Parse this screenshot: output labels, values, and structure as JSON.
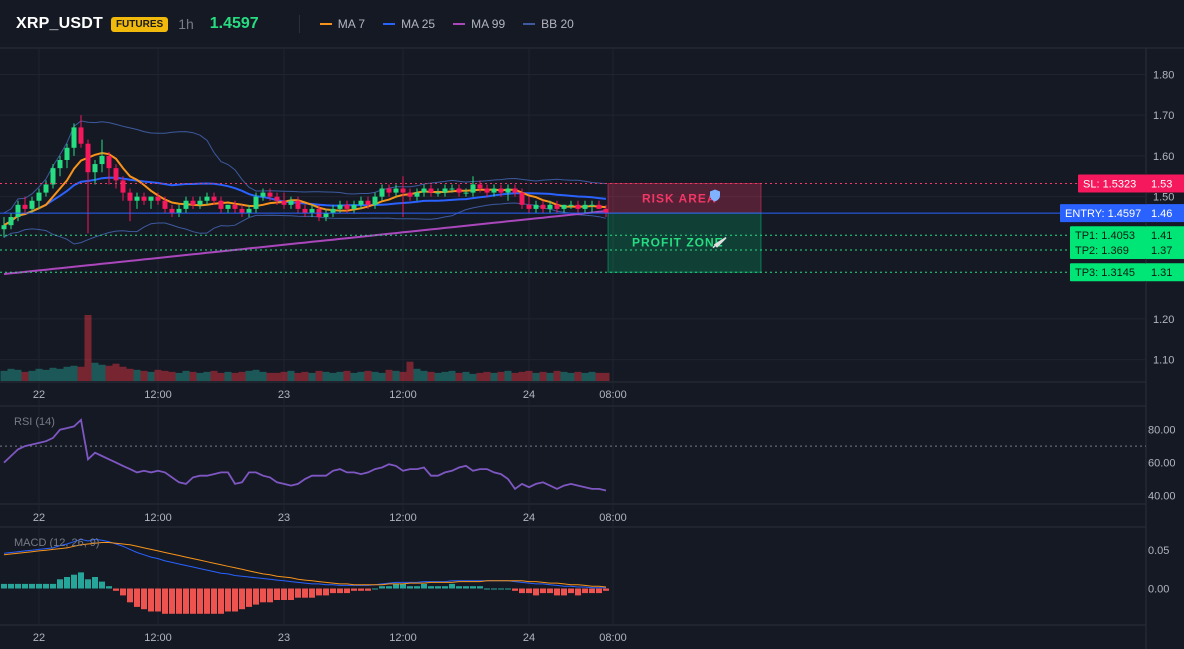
{
  "header": {
    "symbol": "XRP_USDT",
    "badge": "FUTURES",
    "timeframe": "1h",
    "last_price": "1.4597",
    "legend": [
      {
        "label": "MA 7",
        "color": "#f7931a"
      },
      {
        "label": "MA 25",
        "color": "#2962ff"
      },
      {
        "label": "MA 99",
        "color": "#ab47bc"
      },
      {
        "label": "BB 20",
        "color": "#3d5a9e"
      }
    ]
  },
  "colors": {
    "background": "#151924",
    "up": "#26a69a",
    "down": "#f23645",
    "stop_loss": "#f23665",
    "entry": "#2962ff",
    "take_profit": "#00e676",
    "rsi": "#7e57c2",
    "macd": "#2962ff",
    "signal": "#f7931a"
  },
  "chart_data": [
    {
      "type": "candlestick",
      "name": "price",
      "y_axis_ticks": [
        "1.80",
        "1.70",
        "1.60",
        "1.50",
        "1.20",
        "1.10"
      ],
      "ylim": [
        1.05,
        1.86
      ],
      "x_tick_labels": [
        "22",
        "12:00",
        "23",
        "12:00",
        "24",
        "08:00"
      ],
      "x_tick_index": [
        5,
        22,
        40,
        57,
        75,
        87
      ],
      "candles": [
        [
          1.42,
          1.45,
          1.4,
          1.43
        ],
        [
          1.43,
          1.46,
          1.42,
          1.45
        ],
        [
          1.45,
          1.49,
          1.44,
          1.48
        ],
        [
          1.48,
          1.5,
          1.46,
          1.47
        ],
        [
          1.47,
          1.5,
          1.46,
          1.49
        ],
        [
          1.49,
          1.52,
          1.47,
          1.51
        ],
        [
          1.51,
          1.54,
          1.5,
          1.53
        ],
        [
          1.53,
          1.58,
          1.52,
          1.57
        ],
        [
          1.57,
          1.6,
          1.55,
          1.59
        ],
        [
          1.59,
          1.63,
          1.57,
          1.62
        ],
        [
          1.62,
          1.68,
          1.6,
          1.67
        ],
        [
          1.67,
          1.7,
          1.62,
          1.63
        ],
        [
          1.63,
          1.64,
          1.41,
          1.56
        ],
        [
          1.56,
          1.59,
          1.53,
          1.58
        ],
        [
          1.58,
          1.64,
          1.56,
          1.6
        ],
        [
          1.6,
          1.61,
          1.53,
          1.57
        ],
        [
          1.57,
          1.58,
          1.52,
          1.54
        ],
        [
          1.54,
          1.55,
          1.49,
          1.51
        ],
        [
          1.51,
          1.52,
          1.44,
          1.49
        ],
        [
          1.49,
          1.51,
          1.47,
          1.5
        ],
        [
          1.5,
          1.51,
          1.48,
          1.49
        ],
        [
          1.49,
          1.5,
          1.47,
          1.5
        ],
        [
          1.5,
          1.51,
          1.48,
          1.49
        ],
        [
          1.49,
          1.5,
          1.46,
          1.47
        ],
        [
          1.47,
          1.48,
          1.45,
          1.46
        ],
        [
          1.46,
          1.48,
          1.45,
          1.47
        ],
        [
          1.47,
          1.5,
          1.46,
          1.49
        ],
        [
          1.49,
          1.5,
          1.47,
          1.48
        ],
        [
          1.48,
          1.5,
          1.47,
          1.49
        ],
        [
          1.49,
          1.51,
          1.48,
          1.5
        ],
        [
          1.5,
          1.51,
          1.48,
          1.49
        ],
        [
          1.49,
          1.5,
          1.46,
          1.47
        ],
        [
          1.47,
          1.48,
          1.46,
          1.48
        ],
        [
          1.48,
          1.49,
          1.46,
          1.47
        ],
        [
          1.47,
          1.48,
          1.45,
          1.46
        ],
        [
          1.46,
          1.48,
          1.45,
          1.47
        ],
        [
          1.47,
          1.51,
          1.46,
          1.5
        ],
        [
          1.5,
          1.52,
          1.49,
          1.51
        ],
        [
          1.51,
          1.52,
          1.49,
          1.5
        ],
        [
          1.5,
          1.51,
          1.48,
          1.49
        ],
        [
          1.49,
          1.51,
          1.47,
          1.48
        ],
        [
          1.48,
          1.5,
          1.47,
          1.49
        ],
        [
          1.49,
          1.5,
          1.46,
          1.47
        ],
        [
          1.47,
          1.48,
          1.45,
          1.46
        ],
        [
          1.46,
          1.48,
          1.45,
          1.47
        ],
        [
          1.47,
          1.48,
          1.44,
          1.45
        ],
        [
          1.45,
          1.47,
          1.44,
          1.46
        ],
        [
          1.46,
          1.48,
          1.45,
          1.47
        ],
        [
          1.47,
          1.49,
          1.46,
          1.48
        ],
        [
          1.48,
          1.49,
          1.46,
          1.47
        ],
        [
          1.47,
          1.49,
          1.46,
          1.48
        ],
        [
          1.48,
          1.5,
          1.47,
          1.49
        ],
        [
          1.49,
          1.5,
          1.47,
          1.48
        ],
        [
          1.48,
          1.51,
          1.47,
          1.5
        ],
        [
          1.5,
          1.53,
          1.49,
          1.52
        ],
        [
          1.52,
          1.53,
          1.5,
          1.51
        ],
        [
          1.51,
          1.53,
          1.5,
          1.52
        ],
        [
          1.52,
          1.55,
          1.45,
          1.51
        ],
        [
          1.51,
          1.52,
          1.49,
          1.5
        ],
        [
          1.5,
          1.52,
          1.49,
          1.51
        ],
        [
          1.51,
          1.53,
          1.5,
          1.52
        ],
        [
          1.52,
          1.53,
          1.5,
          1.51
        ],
        [
          1.51,
          1.52,
          1.5,
          1.51
        ],
        [
          1.51,
          1.53,
          1.5,
          1.52
        ],
        [
          1.52,
          1.53,
          1.51,
          1.52
        ],
        [
          1.52,
          1.53,
          1.5,
          1.51
        ],
        [
          1.51,
          1.52,
          1.5,
          1.51
        ],
        [
          1.51,
          1.55,
          1.5,
          1.53
        ],
        [
          1.53,
          1.54,
          1.51,
          1.52
        ],
        [
          1.52,
          1.53,
          1.5,
          1.51
        ],
        [
          1.51,
          1.53,
          1.5,
          1.52
        ],
        [
          1.52,
          1.53,
          1.5,
          1.51
        ],
        [
          1.51,
          1.53,
          1.49,
          1.52
        ],
        [
          1.52,
          1.53,
          1.5,
          1.51
        ],
        [
          1.51,
          1.52,
          1.47,
          1.48
        ],
        [
          1.48,
          1.5,
          1.46,
          1.47
        ],
        [
          1.47,
          1.49,
          1.46,
          1.48
        ],
        [
          1.48,
          1.49,
          1.46,
          1.47
        ],
        [
          1.47,
          1.49,
          1.46,
          1.48
        ],
        [
          1.48,
          1.49,
          1.46,
          1.47
        ],
        [
          1.47,
          1.48,
          1.46,
          1.48
        ],
        [
          1.48,
          1.49,
          1.47,
          1.48
        ],
        [
          1.48,
          1.49,
          1.46,
          1.47
        ],
        [
          1.47,
          1.49,
          1.46,
          1.48
        ],
        [
          1.48,
          1.49,
          1.46,
          1.48
        ],
        [
          1.48,
          1.49,
          1.47,
          1.47
        ],
        [
          1.47,
          1.48,
          1.45,
          1.46
        ]
      ],
      "volume": [
        10,
        12,
        11,
        9,
        10,
        12,
        11,
        13,
        12,
        14,
        15,
        14,
        65,
        18,
        16,
        15,
        17,
        14,
        12,
        11,
        10,
        9,
        11,
        10,
        9,
        8,
        10,
        9,
        8,
        9,
        10,
        8,
        9,
        8,
        9,
        10,
        11,
        9,
        8,
        8,
        9,
        10,
        8,
        9,
        8,
        10,
        9,
        8,
        9,
        10,
        8,
        9,
        10,
        9,
        8,
        11,
        10,
        9,
        19,
        12,
        10,
        9,
        8,
        9,
        10,
        8,
        9,
        7,
        8,
        9,
        8,
        9,
        10,
        8,
        9,
        10,
        8,
        9,
        8,
        10,
        9,
        8,
        9,
        8,
        9,
        8,
        8
      ]
    },
    {
      "type": "line",
      "name": "RSI (14)",
      "y_axis_ticks": [
        "80.00",
        "60.00",
        "40.00"
      ],
      "ylim": [
        36,
        92
      ],
      "reference_line": 70,
      "values": [
        60,
        64,
        68,
        70,
        71,
        72,
        73,
        75,
        80,
        81,
        82,
        86,
        62,
        66,
        64,
        62,
        60,
        58,
        56,
        54,
        55,
        54,
        55,
        54,
        51,
        48,
        47,
        51,
        52,
        52,
        53,
        54,
        54,
        47,
        48,
        54,
        54,
        52,
        51,
        48,
        47,
        46,
        47,
        50,
        52,
        52,
        52,
        55,
        56,
        54,
        54,
        53,
        54,
        56,
        57,
        59,
        58,
        55,
        56,
        56,
        57,
        52,
        52,
        54,
        55,
        57,
        58,
        55,
        56,
        56,
        54,
        53,
        50,
        44,
        47,
        45,
        47,
        48,
        46,
        44,
        46,
        47,
        46,
        45,
        44,
        44,
        43
      ]
    },
    {
      "type": "bar+line",
      "name": "MACD (12, 26, 9)",
      "y_axis_ticks": [
        "0.05",
        "0.00"
      ],
      "ylim": [
        -0.045,
        0.075
      ],
      "macd": [
        0.046,
        0.047,
        0.048,
        0.049,
        0.05,
        0.051,
        0.052,
        0.053,
        0.056,
        0.058,
        0.061,
        0.064,
        0.062,
        0.064,
        0.063,
        0.061,
        0.058,
        0.055,
        0.051,
        0.047,
        0.044,
        0.041,
        0.039,
        0.036,
        0.034,
        0.032,
        0.03,
        0.028,
        0.026,
        0.024,
        0.022,
        0.02,
        0.019,
        0.017,
        0.016,
        0.015,
        0.014,
        0.013,
        0.012,
        0.011,
        0.01,
        0.009,
        0.008,
        0.007,
        0.006,
        0.006,
        0.005,
        0.005,
        0.004,
        0.004,
        0.004,
        0.004,
        0.004,
        0.005,
        0.006,
        0.007,
        0.008,
        0.008,
        0.008,
        0.008,
        0.009,
        0.009,
        0.009,
        0.009,
        0.01,
        0.01,
        0.01,
        0.01,
        0.01,
        0.01,
        0.01,
        0.01,
        0.01,
        0.009,
        0.008,
        0.007,
        0.006,
        0.006,
        0.005,
        0.004,
        0.003,
        0.003,
        0.002,
        0.002,
        0.001,
        0.001,
        0.001
      ],
      "signal": [
        0.044,
        0.045,
        0.046,
        0.047,
        0.048,
        0.049,
        0.05,
        0.051,
        0.052,
        0.053,
        0.055,
        0.057,
        0.058,
        0.059,
        0.06,
        0.06,
        0.059,
        0.058,
        0.057,
        0.055,
        0.053,
        0.051,
        0.049,
        0.047,
        0.045,
        0.043,
        0.041,
        0.039,
        0.037,
        0.035,
        0.033,
        0.031,
        0.029,
        0.027,
        0.025,
        0.023,
        0.021,
        0.019,
        0.018,
        0.016,
        0.015,
        0.014,
        0.012,
        0.011,
        0.01,
        0.009,
        0.008,
        0.007,
        0.006,
        0.006,
        0.005,
        0.005,
        0.005,
        0.005,
        0.005,
        0.006,
        0.006,
        0.006,
        0.007,
        0.007,
        0.007,
        0.008,
        0.008,
        0.008,
        0.008,
        0.009,
        0.009,
        0.009,
        0.009,
        0.01,
        0.01,
        0.01,
        0.01,
        0.01,
        0.01,
        0.009,
        0.009,
        0.008,
        0.007,
        0.007,
        0.006,
        0.005,
        0.005,
        0.004,
        0.003,
        0.003,
        0.002
      ]
    }
  ],
  "trade_levels": {
    "sl": {
      "label": "SL: 1.5323",
      "axis": "1.53",
      "value": 1.5323
    },
    "entry": {
      "label": "ENTRY: 1.4597",
      "axis": "1.46",
      "value": 1.4597
    },
    "tps": [
      {
        "label": "TP1: 1.4053",
        "axis": "1.41",
        "value": 1.4053
      },
      {
        "label": "TP2: 1.369",
        "axis": "1.37",
        "value": 1.369
      },
      {
        "label": "TP3: 1.3145",
        "axis": "1.31",
        "value": 1.3145
      }
    ],
    "risk_label": "RISK AREA",
    "profit_label": "PROFIT ZONE"
  }
}
